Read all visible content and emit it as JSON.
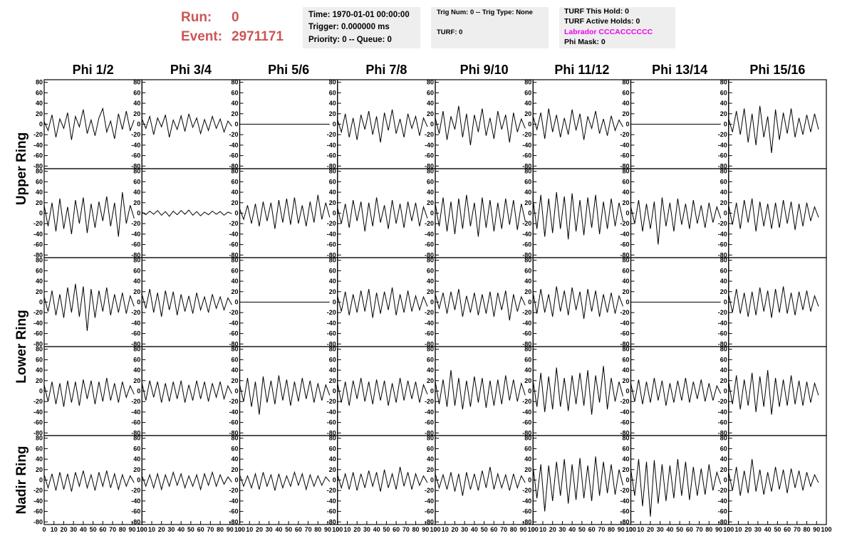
{
  "header": {
    "run_label": "Run:",
    "run": 0,
    "event_label": "Event:",
    "event": 2971171,
    "time": "Time: 1970-01-01 00:00:00",
    "trigger": "Trigger: 0.000000 ms",
    "priority": "Priority: 0 -- Queue: 0",
    "trig_num": "Trig Num: 0 -- Trig Type: None",
    "turf": "TURF: 0",
    "turf_hold": "TURF This Hold: 0",
    "turf_active": "TURF Active Holds: 0",
    "labrador": "Labrador CCCACCCCCC",
    "phi_mask": "Phi Mask: 0"
  },
  "chart_data": {
    "type": "line",
    "columns": [
      "Phi 1/2",
      "Phi 3/4",
      "Phi 5/6",
      "Phi 7/8",
      "Phi 9/10",
      "Phi 11/12",
      "Phi 13/14",
      "Phi 15/16"
    ],
    "rings": [
      "Upper Ring",
      "Lower Ring",
      "Nadir Ring"
    ],
    "ylim": [
      -85,
      85
    ],
    "yticks": [
      -80,
      -60,
      -40,
      -20,
      0,
      20,
      40,
      60,
      80
    ],
    "xlim": [
      0,
      100
    ],
    "xticks": [
      0,
      10,
      20,
      30,
      40,
      50,
      60,
      70,
      80,
      90,
      100
    ],
    "x": [
      0,
      4,
      8,
      12,
      16,
      20,
      24,
      28,
      32,
      36,
      40,
      44,
      48,
      52,
      56,
      60,
      64,
      68,
      72,
      76,
      80,
      84,
      88,
      92
    ],
    "color": "#000000",
    "panels": [
      [
        5,
        -12,
        18,
        -25,
        10,
        -8,
        22,
        -30,
        15,
        -5,
        28,
        -18,
        8,
        -22,
        12,
        30,
        -15,
        6,
        -28,
        20,
        -10,
        25,
        -12,
        8
      ],
      [
        10,
        -8,
        15,
        -20,
        12,
        -5,
        18,
        -25,
        8,
        -10,
        16,
        -14,
        20,
        -6,
        12,
        -18,
        9,
        -12,
        15,
        -8,
        10,
        -15,
        6,
        -4
      ],
      [
        0,
        0,
        0,
        0,
        0,
        0,
        0,
        0,
        0,
        0,
        0,
        0,
        0,
        0,
        0,
        0,
        0,
        0,
        0,
        0,
        0,
        0,
        0,
        0
      ],
      [
        8,
        -15,
        20,
        -25,
        12,
        -30,
        18,
        -10,
        25,
        -20,
        15,
        -35,
        22,
        -12,
        28,
        -18,
        10,
        -25,
        20,
        -8,
        15,
        -22,
        12,
        -5
      ],
      [
        12,
        -18,
        25,
        -30,
        15,
        -10,
        35,
        -25,
        20,
        -40,
        18,
        -15,
        30,
        -22,
        12,
        -28,
        25,
        -10,
        18,
        -35,
        22,
        -15,
        10,
        -8
      ],
      [
        15,
        -10,
        22,
        -28,
        30,
        -15,
        18,
        -25,
        12,
        -20,
        28,
        -12,
        20,
        -30,
        15,
        -8,
        25,
        -18,
        10,
        -22,
        16,
        -12,
        8,
        -5
      ],
      [
        0,
        0,
        0,
        0,
        0,
        0,
        0,
        0,
        0,
        0,
        0,
        0,
        0,
        0,
        0,
        0,
        0,
        0,
        0,
        0,
        0,
        0,
        0,
        0
      ],
      [
        10,
        -15,
        25,
        -20,
        30,
        -35,
        20,
        -40,
        35,
        -25,
        15,
        -55,
        28,
        -30,
        22,
        -18,
        30,
        -25,
        12,
        -20,
        18,
        -15,
        20,
        -10
      ],
      [
        15,
        -25,
        20,
        -35,
        28,
        -30,
        12,
        -40,
        25,
        -20,
        30,
        -38,
        18,
        -28,
        22,
        -15,
        32,
        -25,
        20,
        -45,
        40,
        -20,
        15,
        -10
      ],
      [
        2,
        -3,
        4,
        -2,
        5,
        -4,
        3,
        -6,
        4,
        -3,
        5,
        -2,
        6,
        -4,
        3,
        -5,
        2,
        -3,
        4,
        -2,
        3,
        -4,
        2,
        -1
      ],
      [
        8,
        -12,
        15,
        -20,
        18,
        -25,
        22,
        -15,
        20,
        -30,
        25,
        -18,
        28,
        -22,
        30,
        -20,
        15,
        -25,
        22,
        -18,
        35,
        -12,
        20,
        -8
      ],
      [
        10,
        -20,
        18,
        -28,
        25,
        -15,
        22,
        -35,
        20,
        -25,
        30,
        -18,
        15,
        -30,
        25,
        -20,
        18,
        -28,
        22,
        -15,
        20,
        -25,
        12,
        -10
      ],
      [
        18,
        -25,
        30,
        -35,
        22,
        -40,
        28,
        -30,
        35,
        -25,
        20,
        -45,
        30,
        -28,
        25,
        -35,
        20,
        -30,
        28,
        -22,
        25,
        -32,
        18,
        -15
      ],
      [
        25,
        -30,
        35,
        -45,
        28,
        -38,
        40,
        -30,
        32,
        -50,
        38,
        -35,
        25,
        -42,
        30,
        -28,
        35,
        -40,
        22,
        -30,
        28,
        -25,
        20,
        -15
      ],
      [
        12,
        -20,
        25,
        -35,
        18,
        -30,
        22,
        -60,
        30,
        -25,
        20,
        -35,
        28,
        -22,
        18,
        -30,
        25,
        -20,
        15,
        -28,
        20,
        -18,
        12,
        -10
      ],
      [
        15,
        -22,
        20,
        -30,
        25,
        -18,
        28,
        -35,
        22,
        -25,
        18,
        -30,
        20,
        -28,
        25,
        -20,
        22,
        -32,
        18,
        -25,
        20,
        -15,
        12,
        -8
      ],
      [
        10,
        -18,
        22,
        -25,
        15,
        -30,
        28,
        -20,
        35,
        -28,
        30,
        -55,
        25,
        -30,
        22,
        -18,
        28,
        -25,
        15,
        -20,
        18,
        -22,
        12,
        -8
      ],
      [
        15,
        -12,
        25,
        -20,
        18,
        -28,
        22,
        -15,
        20,
        -25,
        15,
        -18,
        12,
        -22,
        18,
        -15,
        10,
        -20,
        15,
        -12,
        10,
        -15,
        8,
        -5
      ],
      [
        0,
        0,
        0,
        0,
        0,
        0,
        0,
        0,
        0,
        0,
        0,
        0,
        0,
        0,
        0,
        0,
        0,
        0,
        0,
        0,
        0,
        0,
        0,
        0
      ],
      [
        12,
        -18,
        20,
        -25,
        15,
        -20,
        22,
        -18,
        25,
        -30,
        18,
        -22,
        20,
        -15,
        28,
        -25,
        15,
        -20,
        22,
        -18,
        12,
        -15,
        10,
        -8
      ],
      [
        15,
        -12,
        18,
        -22,
        20,
        -15,
        25,
        -28,
        12,
        -20,
        18,
        -25,
        15,
        -22,
        20,
        -28,
        18,
        -15,
        22,
        -35,
        15,
        -18,
        10,
        -6
      ],
      [
        18,
        -22,
        25,
        -20,
        15,
        -28,
        30,
        -18,
        22,
        -25,
        28,
        -15,
        20,
        -32,
        25,
        -18,
        22,
        -28,
        15,
        -20,
        18,
        -22,
        12,
        -8
      ],
      [
        0,
        0,
        0,
        0,
        0,
        0,
        0,
        0,
        0,
        0,
        0,
        0,
        0,
        0,
        0,
        0,
        0,
        0,
        0,
        0,
        0,
        0,
        0,
        0
      ],
      [
        15,
        -20,
        25,
        -22,
        18,
        -28,
        20,
        -25,
        28,
        -18,
        22,
        -30,
        25,
        -20,
        30,
        -22,
        18,
        -25,
        20,
        -15,
        22,
        -18,
        12,
        -8
      ],
      [
        12,
        -20,
        18,
        -25,
        15,
        -30,
        20,
        -22,
        18,
        -28,
        22,
        -15,
        20,
        -25,
        18,
        -20,
        25,
        -18,
        15,
        -22,
        18,
        -12,
        10,
        -6
      ],
      [
        15,
        -18,
        20,
        -12,
        18,
        -22,
        15,
        -20,
        18,
        -15,
        20,
        -22,
        12,
        -18,
        20,
        -15,
        18,
        -20,
        15,
        -12,
        18,
        -15,
        10,
        -5
      ],
      [
        12,
        -20,
        25,
        -30,
        18,
        -45,
        28,
        -22,
        20,
        -25,
        30,
        -18,
        22,
        -28,
        18,
        -20,
        25,
        -15,
        20,
        -22,
        15,
        -18,
        12,
        -8
      ],
      [
        15,
        -22,
        18,
        -28,
        20,
        -15,
        25,
        -20,
        18,
        -25,
        22,
        -18,
        20,
        -28,
        15,
        -22,
        25,
        -18,
        20,
        -15,
        18,
        -22,
        12,
        -6
      ],
      [
        18,
        -25,
        22,
        -30,
        40,
        -28,
        25,
        -35,
        20,
        -30,
        28,
        -22,
        25,
        -32,
        20,
        -28,
        22,
        -25,
        30,
        -18,
        22,
        -20,
        15,
        -8
      ],
      [
        20,
        -30,
        35,
        -40,
        28,
        -35,
        45,
        -30,
        25,
        -38,
        30,
        -25,
        35,
        -28,
        40,
        -45,
        30,
        -22,
        48,
        -35,
        25,
        -20,
        18,
        -10
      ],
      [
        15,
        -20,
        22,
        -25,
        18,
        -22,
        25,
        -18,
        20,
        -28,
        15,
        -22,
        20,
        -18,
        25,
        -22,
        18,
        -15,
        22,
        -20,
        15,
        -18,
        10,
        -5
      ],
      [
        18,
        -25,
        30,
        -35,
        22,
        -28,
        35,
        -40,
        28,
        -30,
        40,
        -45,
        25,
        -30,
        22,
        -28,
        30,
        -25,
        20,
        -28,
        18,
        -22,
        15,
        -8
      ],
      [
        10,
        -15,
        12,
        -20,
        15,
        -18,
        12,
        -22,
        15,
        -12,
        18,
        -15,
        10,
        -20,
        15,
        -12,
        18,
        -15,
        12,
        -18,
        10,
        -12,
        8,
        -5
      ],
      [
        8,
        -12,
        10,
        -15,
        12,
        -18,
        10,
        -12,
        15,
        -10,
        12,
        -15,
        8,
        -12,
        10,
        -18,
        12,
        -10,
        15,
        -12,
        10,
        -8,
        6,
        -4
      ],
      [
        10,
        -12,
        8,
        -15,
        12,
        -18,
        15,
        -12,
        10,
        -20,
        12,
        -15,
        8,
        -12,
        15,
        -10,
        12,
        -18,
        10,
        -12,
        8,
        -10,
        6,
        -3
      ],
      [
        10,
        -15,
        12,
        -18,
        15,
        -20,
        12,
        -15,
        18,
        -12,
        15,
        -22,
        20,
        -15,
        12,
        -18,
        25,
        -12,
        15,
        -18,
        12,
        -10,
        8,
        -5
      ],
      [
        12,
        -15,
        10,
        -18,
        15,
        -22,
        12,
        -30,
        15,
        -18,
        12,
        -20,
        18,
        -15,
        25,
        -18,
        12,
        -15,
        10,
        -20,
        12,
        -15,
        8,
        -5
      ],
      [
        25,
        -35,
        30,
        -60,
        28,
        -40,
        35,
        -30,
        40,
        -45,
        30,
        -38,
        42,
        -35,
        28,
        -40,
        45,
        -30,
        35,
        -25,
        30,
        -28,
        20,
        -10
      ],
      [
        20,
        -30,
        40,
        -50,
        35,
        -70,
        38,
        -45,
        30,
        -40,
        28,
        -35,
        40,
        -30,
        35,
        -38,
        25,
        -30,
        22,
        -28,
        30,
        -20,
        15,
        -8
      ],
      [
        15,
        -20,
        25,
        -30,
        18,
        -25,
        40,
        -22,
        20,
        -28,
        15,
        -22,
        25,
        -18,
        20,
        -25,
        22,
        -15,
        18,
        -20,
        15,
        -12,
        10,
        -5
      ]
    ]
  }
}
